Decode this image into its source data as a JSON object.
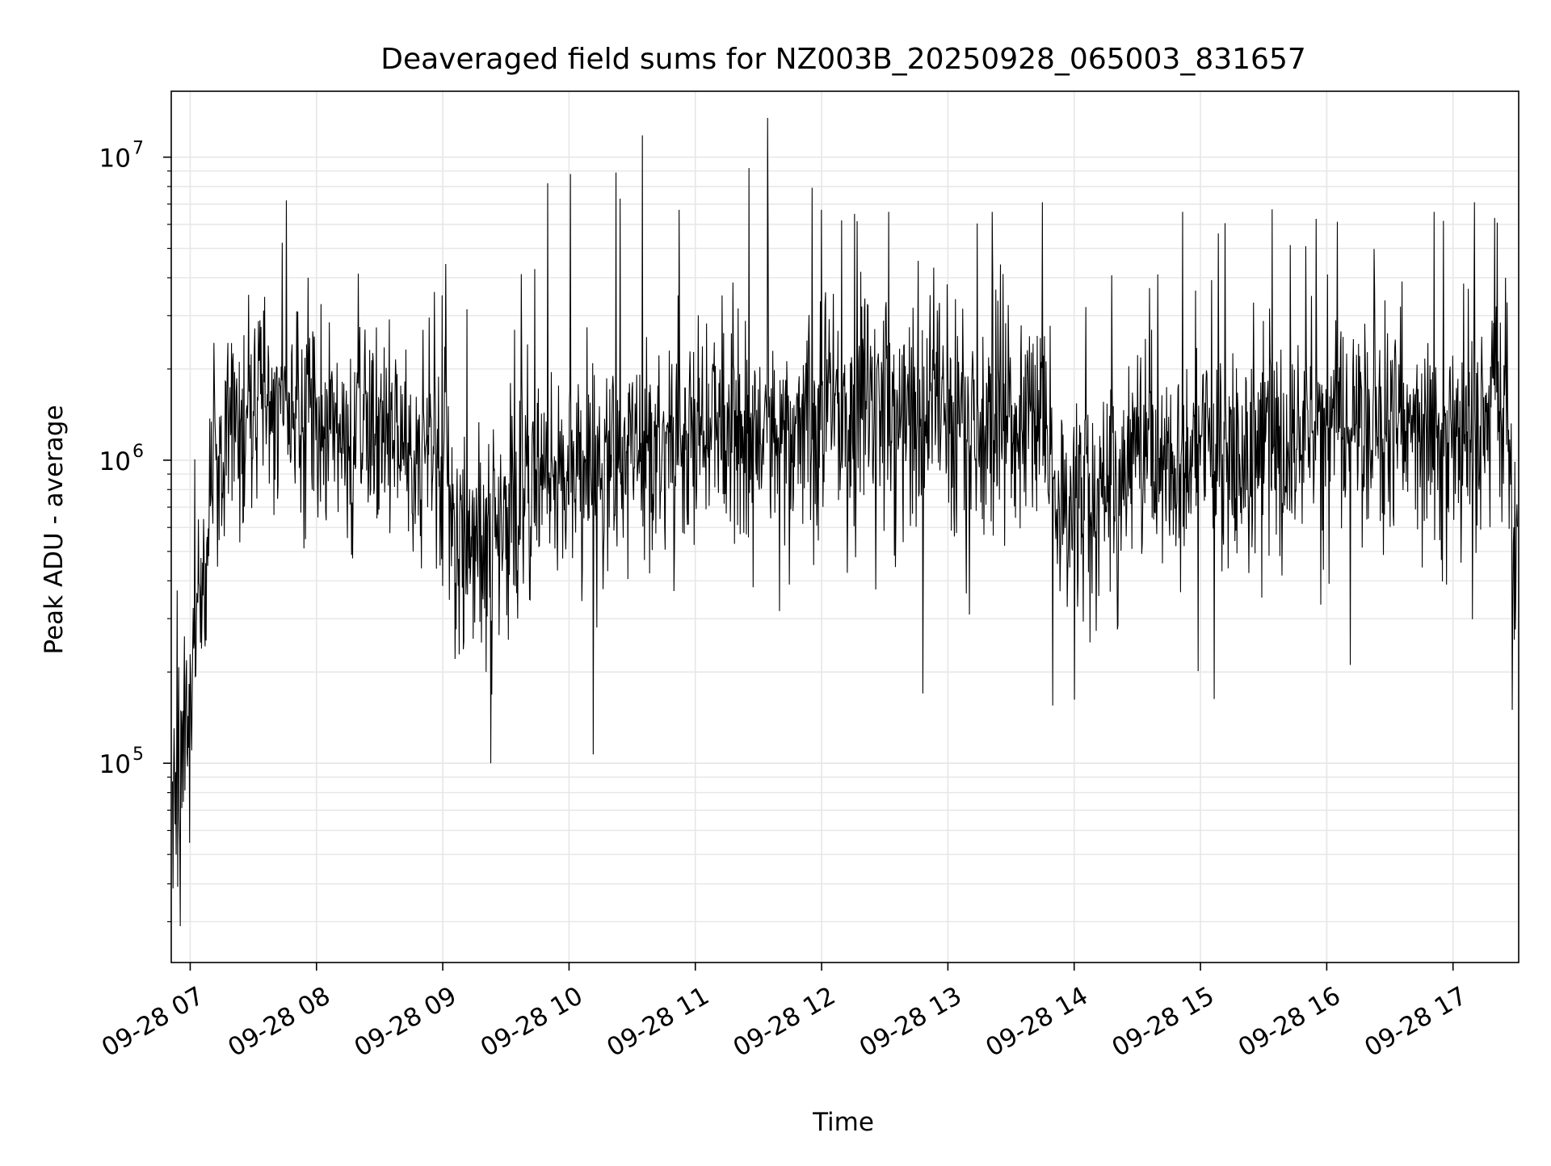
{
  "chart_data": {
    "type": "line",
    "title": "Deaveraged field sums for NZ003B_20250928_065003_831657",
    "xlabel": "Time",
    "ylabel": "Peak ADU - average",
    "yscale": "log",
    "ylim": [
      22000,
      16500000
    ],
    "xlim_hours": [
      6.85,
      17.52
    ],
    "x_ticks": [
      {
        "hour": 7,
        "label": "09-28 07"
      },
      {
        "hour": 8,
        "label": "09-28 08"
      },
      {
        "hour": 9,
        "label": "09-28 09"
      },
      {
        "hour": 10,
        "label": "09-28 10"
      },
      {
        "hour": 11,
        "label": "09-28 11"
      },
      {
        "hour": 12,
        "label": "09-28 12"
      },
      {
        "hour": 13,
        "label": "09-28 13"
      },
      {
        "hour": 14,
        "label": "09-28 14"
      },
      {
        "hour": 15,
        "label": "09-28 15"
      },
      {
        "hour": 16,
        "label": "09-28 16"
      },
      {
        "hour": 17,
        "label": "09-28 17"
      }
    ],
    "y_ticks": [
      {
        "value": 100000,
        "base": "10",
        "exp": "5"
      },
      {
        "value": 1000000,
        "base": "10",
        "exp": "6"
      },
      {
        "value": 10000000,
        "base": "10",
        "exp": "7"
      }
    ],
    "grid": true,
    "line_color": "#000000",
    "grid_color": "#e6e6e6",
    "series": [
      {
        "name": "deaveraged sum",
        "envelope_hours": [
          6.85,
          6.95,
          7.05,
          7.15,
          7.3,
          7.5,
          7.7,
          8.0,
          8.3,
          8.6,
          8.9,
          9.05,
          9.2,
          9.35,
          9.5,
          9.7,
          9.9,
          10.2,
          10.5,
          10.8,
          11.0,
          11.3,
          11.6,
          11.9,
          12.2,
          12.5,
          12.8,
          13.0,
          13.3,
          13.6,
          13.8,
          13.85,
          13.95,
          14.1,
          14.3,
          14.6,
          14.9,
          15.1,
          15.3,
          15.6,
          15.9,
          16.2,
          16.5,
          16.8,
          17.0,
          17.2,
          17.35,
          17.42,
          17.47,
          17.52
        ],
        "envelope_median": [
          60000,
          110000,
          250000,
          700000,
          1200000,
          1450000,
          1600000,
          1300000,
          1200000,
          1100000,
          1050000,
          700000,
          550000,
          500000,
          600000,
          750000,
          850000,
          900000,
          1000000,
          1150000,
          1300000,
          1300000,
          1350000,
          1400000,
          1500000,
          1550000,
          1450000,
          1350000,
          1300000,
          1250000,
          1150000,
          700000,
          650000,
          800000,
          1000000,
          1050000,
          1100000,
          1050000,
          1000000,
          1150000,
          1200000,
          1300000,
          1350000,
          1300000,
          1250000,
          1300000,
          1800000,
          1300000,
          600000,
          300000
        ],
        "notable_peaks": [
          {
            "hour": 7.76,
            "value": 7200000
          },
          {
            "hour": 9.83,
            "value": 8200000
          },
          {
            "hour": 10.01,
            "value": 8800000
          },
          {
            "hour": 10.37,
            "value": 8900000
          },
          {
            "hour": 10.58,
            "value": 11800000
          },
          {
            "hour": 10.87,
            "value": 6700000
          },
          {
            "hour": 12.0,
            "value": 6700000
          },
          {
            "hour": 12.26,
            "value": 6500000
          },
          {
            "hour": 12.53,
            "value": 6600000
          },
          {
            "hour": 13.35,
            "value": 6600000
          },
          {
            "hour": 13.75,
            "value": 7100000
          },
          {
            "hour": 15.14,
            "value": 5600000
          },
          {
            "hour": 16.85,
            "value": 6600000
          },
          {
            "hour": 17.17,
            "value": 7100000
          },
          {
            "hour": 17.33,
            "value": 6300000
          }
        ],
        "notable_troughs": [
          {
            "hour": 6.92,
            "value": 29000
          },
          {
            "hour": 9.38,
            "value": 100000
          },
          {
            "hour": 10.19,
            "value": 107000
          },
          {
            "hour": 12.8,
            "value": 170000
          },
          {
            "hour": 13.83,
            "value": 155000
          },
          {
            "hour": 15.11,
            "value": 163000
          },
          {
            "hour": 17.47,
            "value": 150000
          }
        ]
      }
    ]
  }
}
